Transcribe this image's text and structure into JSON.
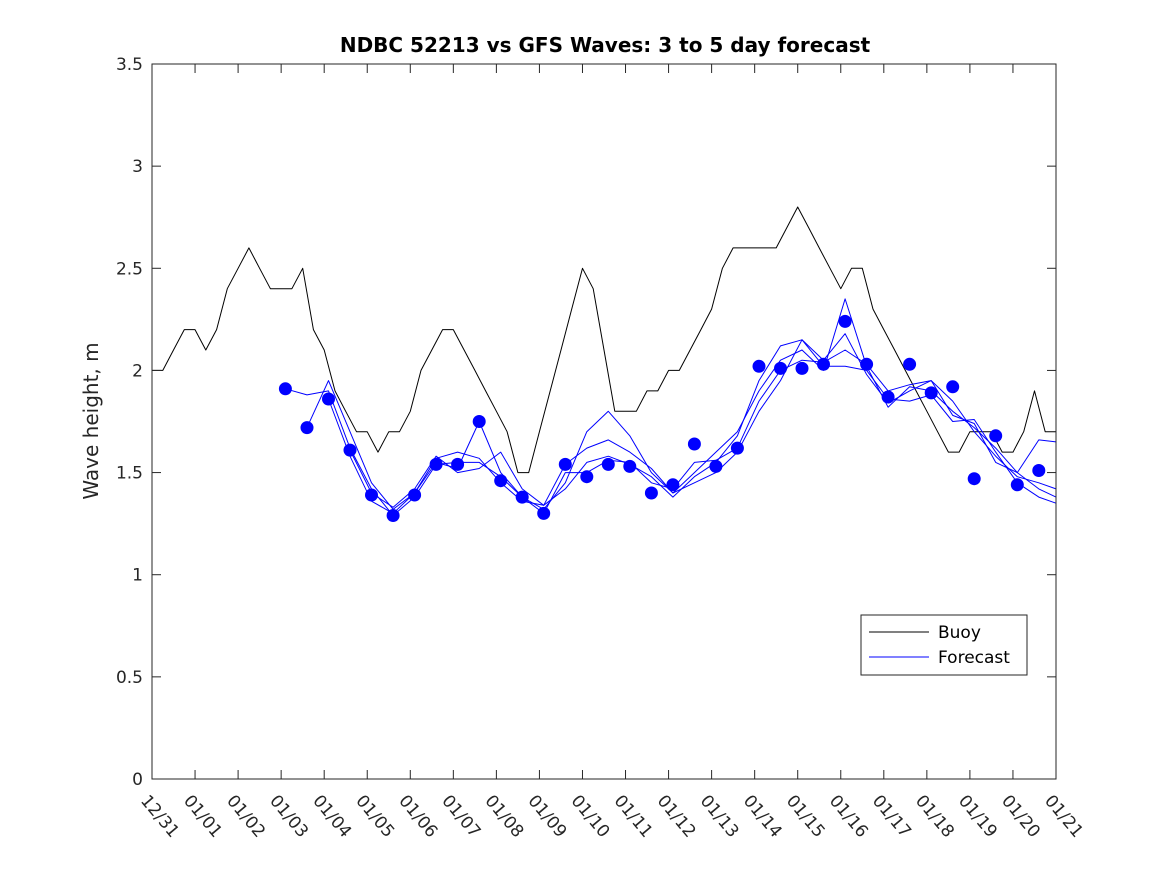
{
  "chart_data": {
    "type": "line",
    "title": "NDBC 52213 vs GFS Waves: 3 to 5 day forecast",
    "xlabel": "",
    "ylabel": "Wave height, m",
    "xlim": [
      0,
      21
    ],
    "ylim": [
      0,
      3.5
    ],
    "yticks": [
      0,
      0.5,
      1,
      1.5,
      2,
      2.5,
      3,
      3.5
    ],
    "ytick_labels": [
      "0",
      "0.5",
      "1",
      "1.5",
      "2",
      "2.5",
      "3",
      "3.5"
    ],
    "xtick_labels": [
      "12/31",
      "01/01",
      "01/02",
      "01/03",
      "01/04",
      "01/05",
      "01/06",
      "01/07",
      "01/08",
      "01/09",
      "01/10",
      "01/11",
      "01/12",
      "01/13",
      "01/14",
      "01/15",
      "01/16",
      "01/17",
      "01/18",
      "01/19",
      "01/20",
      "01/21"
    ],
    "legend": {
      "position": "lower-right",
      "entries": [
        {
          "label": "Buoy",
          "color": "#000000"
        },
        {
          "label": "Forecast",
          "color": "#0000ff"
        }
      ]
    },
    "series": [
      {
        "name": "Buoy",
        "color": "#000000",
        "x": [
          0,
          0.25,
          0.5,
          0.75,
          1.0,
          1.25,
          1.5,
          1.75,
          2.0,
          2.25,
          2.5,
          2.75,
          3.0,
          3.25,
          3.5,
          3.75,
          4.0,
          4.25,
          4.5,
          4.75,
          5.0,
          5.25,
          5.5,
          5.75,
          6.0,
          6.25,
          6.5,
          6.75,
          7.0,
          7.25,
          7.5,
          7.75,
          8.0,
          8.25,
          8.5,
          8.75,
          9.0,
          9.25,
          9.5,
          9.75,
          10.0,
          10.25,
          10.5,
          10.75,
          11.0,
          11.25,
          11.5,
          11.75,
          12.0,
          12.25,
          12.5,
          12.75,
          13.0,
          13.25,
          13.5,
          13.75,
          14.0,
          14.25,
          14.5,
          14.75,
          15.0,
          15.25,
          15.5,
          15.75,
          16.0,
          16.25,
          16.5,
          16.75,
          17.0,
          17.25,
          17.5,
          17.75,
          18.0,
          18.25,
          18.5,
          18.75,
          19.0,
          19.25,
          19.5,
          19.75,
          20.0,
          20.25,
          20.5,
          20.75,
          21.0
        ],
        "values": [
          2.0,
          2.0,
          2.1,
          2.2,
          2.2,
          2.1,
          2.2,
          2.4,
          2.5,
          2.6,
          2.5,
          2.4,
          2.4,
          2.4,
          2.5,
          2.2,
          2.1,
          1.9,
          1.8,
          1.7,
          1.7,
          1.6,
          1.7,
          1.7,
          1.8,
          2.0,
          2.1,
          2.2,
          2.2,
          2.1,
          2.0,
          1.9,
          1.8,
          1.7,
          1.5,
          1.5,
          1.7,
          1.9,
          2.1,
          2.3,
          2.5,
          2.4,
          2.1,
          1.8,
          1.8,
          1.8,
          1.9,
          1.9,
          2.0,
          2.0,
          2.1,
          2.2,
          2.3,
          2.5,
          2.6,
          2.6,
          2.6,
          2.6,
          2.6,
          2.7,
          2.8,
          2.7,
          2.6,
          2.5,
          2.4,
          2.5,
          2.5,
          2.3,
          2.2,
          2.1,
          2.0,
          1.9,
          1.8,
          1.7,
          1.6,
          1.6,
          1.7,
          1.7,
          1.7,
          1.6,
          1.6,
          1.7,
          1.9,
          1.7,
          1.7
        ]
      },
      {
        "name": "Forecast",
        "color": "#0000ff",
        "x": [
          3.1,
          3.6,
          4.1,
          4.6,
          5.1,
          5.6,
          6.1,
          6.6,
          7.1,
          7.6,
          8.1,
          8.6,
          9.1,
          9.6,
          10.1,
          10.6,
          11.1,
          11.6,
          12.1,
          12.6,
          13.1,
          13.6,
          14.1,
          14.6,
          15.1,
          15.6,
          16.1,
          16.6,
          17.1,
          17.6,
          18.1,
          18.6,
          19.1,
          19.6,
          20.1,
          20.6,
          21.0
        ],
        "values": [
          1.91,
          1.88,
          1.9,
          1.62,
          1.42,
          1.29,
          1.38,
          1.54,
          1.55,
          1.55,
          1.48,
          1.38,
          1.3,
          1.5,
          1.5,
          1.56,
          1.55,
          1.45,
          1.42,
          1.55,
          1.56,
          1.62,
          1.85,
          2.0,
          2.05,
          2.04,
          2.1,
          2.03,
          1.9,
          1.93,
          1.95,
          1.85,
          1.7,
          1.58,
          1.48,
          1.45,
          1.42
        ]
      },
      {
        "name": "Forecast (run 2)",
        "color": "#0000ff",
        "x": [
          3.6,
          4.1,
          4.6,
          5.1,
          5.6,
          6.1,
          6.6,
          7.1,
          7.6,
          8.1,
          8.6,
          9.1,
          9.6,
          10.1,
          10.6,
          11.1,
          11.6,
          12.1,
          12.6,
          13.1,
          13.6,
          14.1,
          14.6,
          15.1,
          15.6,
          16.1,
          16.6,
          17.1,
          17.6,
          18.1,
          18.6,
          19.1,
          19.6,
          20.1,
          20.6,
          21.0
        ],
        "values": [
          1.72,
          1.95,
          1.7,
          1.45,
          1.32,
          1.4,
          1.57,
          1.6,
          1.57,
          1.45,
          1.36,
          1.34,
          1.54,
          1.62,
          1.66,
          1.6,
          1.52,
          1.4,
          1.5,
          1.6,
          1.7,
          1.9,
          2.05,
          2.1,
          2.0,
          2.35,
          2.02,
          1.82,
          1.92,
          1.9,
          1.8,
          1.72,
          1.62,
          1.5,
          1.42,
          1.38
        ]
      },
      {
        "name": "Forecast (run 3)",
        "color": "#0000ff",
        "x": [
          4.1,
          4.6,
          5.1,
          5.6,
          6.1,
          6.6,
          7.1,
          7.6,
          8.1,
          8.6,
          9.1,
          9.6,
          10.1,
          10.6,
          11.1,
          11.6,
          12.1,
          12.6,
          13.1,
          13.6,
          14.1,
          14.6,
          15.1,
          15.6,
          16.1,
          16.6,
          17.1,
          17.6,
          18.1,
          18.6,
          19.1,
          19.6,
          20.1,
          20.6,
          21.0
        ],
        "values": [
          1.86,
          1.58,
          1.36,
          1.3,
          1.4,
          1.55,
          1.52,
          1.75,
          1.5,
          1.38,
          1.32,
          1.45,
          1.7,
          1.8,
          1.68,
          1.5,
          1.4,
          1.45,
          1.5,
          1.6,
          1.8,
          1.95,
          2.15,
          2.02,
          2.02,
          2.0,
          1.86,
          1.85,
          1.88,
          1.75,
          1.76,
          1.6,
          1.45,
          1.38,
          1.35
        ]
      },
      {
        "name": "Forecast (run 4)",
        "color": "#0000ff",
        "x": [
          4.6,
          5.1,
          5.6,
          6.1,
          6.6,
          7.1,
          7.6,
          8.1,
          8.6,
          9.1,
          9.6,
          10.1,
          10.6,
          11.1,
          11.6,
          12.1,
          12.6,
          13.1,
          13.6,
          14.1,
          14.6,
          15.1,
          15.6,
          16.1,
          16.6,
          17.1,
          17.6,
          18.1,
          18.6,
          19.1,
          19.6,
          20.1,
          20.6,
          21.0
        ],
        "values": [
          1.61,
          1.4,
          1.33,
          1.42,
          1.58,
          1.5,
          1.52,
          1.6,
          1.42,
          1.34,
          1.42,
          1.55,
          1.58,
          1.54,
          1.48,
          1.38,
          1.48,
          1.55,
          1.68,
          1.95,
          2.12,
          2.15,
          2.05,
          2.18,
          1.98,
          1.84,
          1.9,
          1.95,
          1.78,
          1.74,
          1.55,
          1.5,
          1.66,
          1.65
        ]
      }
    ],
    "markers": {
      "name": "Forecast markers",
      "color": "#0000ff",
      "x": [
        3.1,
        3.6,
        4.1,
        4.6,
        5.1,
        5.6,
        6.1,
        6.6,
        7.1,
        7.6,
        8.1,
        8.6,
        9.1,
        9.6,
        10.1,
        10.6,
        11.1,
        11.6,
        12.1,
        12.6,
        13.1,
        13.6,
        14.1,
        14.6,
        15.1,
        15.6,
        16.1,
        16.6,
        17.1,
        17.6,
        18.1,
        18.6,
        19.1,
        19.6,
        20.1,
        20.6
      ],
      "values": [
        1.91,
        1.72,
        1.86,
        1.61,
        1.39,
        1.29,
        1.39,
        1.54,
        1.54,
        1.75,
        1.46,
        1.38,
        1.3,
        1.54,
        1.48,
        1.54,
        1.53,
        1.4,
        1.44,
        1.64,
        1.53,
        1.62,
        2.02,
        2.01,
        2.01,
        2.03,
        2.24,
        2.03,
        1.87,
        2.03,
        1.89,
        1.92,
        1.47,
        1.68,
        1.44,
        1.51
      ]
    }
  }
}
